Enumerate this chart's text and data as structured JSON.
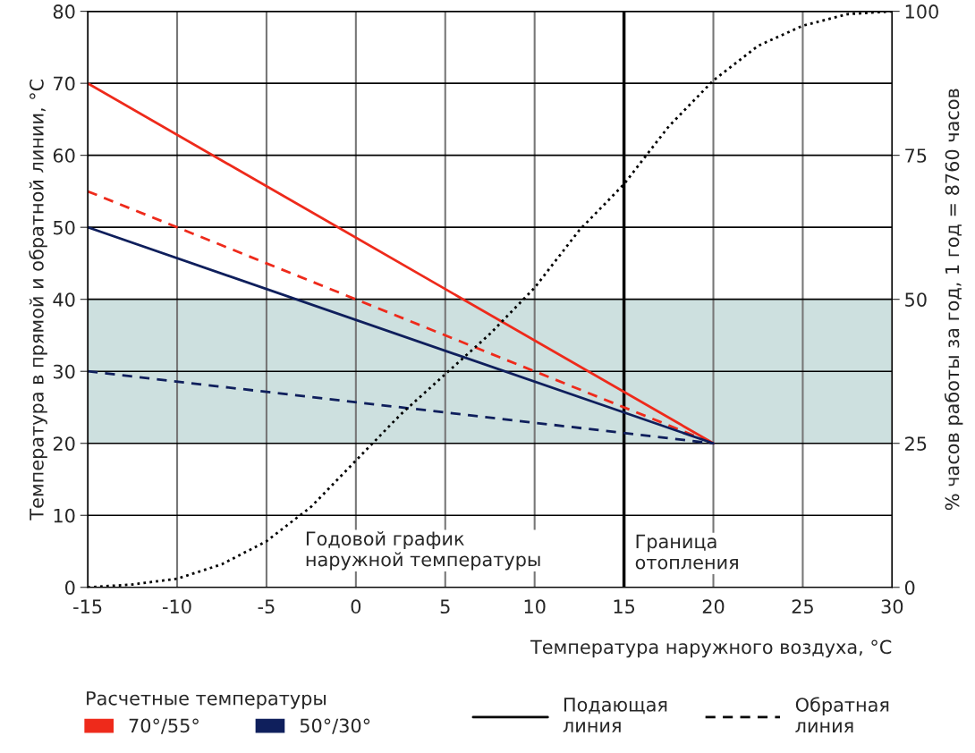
{
  "chart_data": {
    "type": "line",
    "xlabel": "Температура наружного воздуха, °C",
    "ylabel": "Температура в прямой и обратной линии, °C",
    "y2label": "% часов работы за год, 1 год = 8760 часов",
    "legend_title": "Расчетные температуры",
    "x": [
      -15,
      20
    ],
    "series": [
      {
        "name": "70°/55°",
        "color": "#ee2a1b",
        "line_style": "solid",
        "values": [
          70,
          20
        ]
      },
      {
        "color": "#ee2a1b",
        "line_style": "dashed",
        "values": [
          55,
          20
        ]
      },
      {
        "name": "50°/30°",
        "color": "#0f1f5c",
        "line_style": "solid",
        "values": [
          50,
          20
        ]
      },
      {
        "color": "#0f1f5c",
        "line_style": "dashed",
        "values": [
          30,
          20
        ]
      },
      {
        "color": "#000000",
        "line_style": "dotted",
        "axis": "y2",
        "x": [
          -15,
          -12.5,
          -10,
          -7.5,
          -5,
          -2.5,
          0,
          2.5,
          5,
          7.5,
          10,
          12.5,
          15,
          17.5,
          20,
          22.5,
          25,
          27.5,
          30
        ],
        "values": [
          0,
          0.5,
          1.5,
          4,
          8,
          14,
          22,
          30,
          37,
          44,
          52,
          62,
          70,
          80,
          88,
          94,
          97.5,
          99.5,
          100
        ]
      }
    ],
    "xlim": [
      -15,
      30
    ],
    "xticks": [
      -15,
      -10,
      -5,
      0,
      5,
      10,
      15,
      20,
      25,
      30
    ],
    "ylim": [
      0,
      80
    ],
    "yticks": [
      0,
      10,
      20,
      30,
      40,
      50,
      60,
      70,
      80
    ],
    "y2lim": [
      0,
      100
    ],
    "y2ticks": [
      0,
      25,
      50,
      75,
      100
    ],
    "bands": [
      {
        "axis": "y",
        "from": 20,
        "to": 40,
        "color": "#cde0df"
      }
    ],
    "ref_lines": [
      {
        "axis": "x",
        "value": 15,
        "label": "Граница\nотопления",
        "color": "#000000"
      }
    ],
    "annotations": [
      "Годовой график\nнаружной температуры",
      "Подающая\nлиния",
      "Обратная\nлиния"
    ],
    "grid": true,
    "legend": "bottom"
  }
}
